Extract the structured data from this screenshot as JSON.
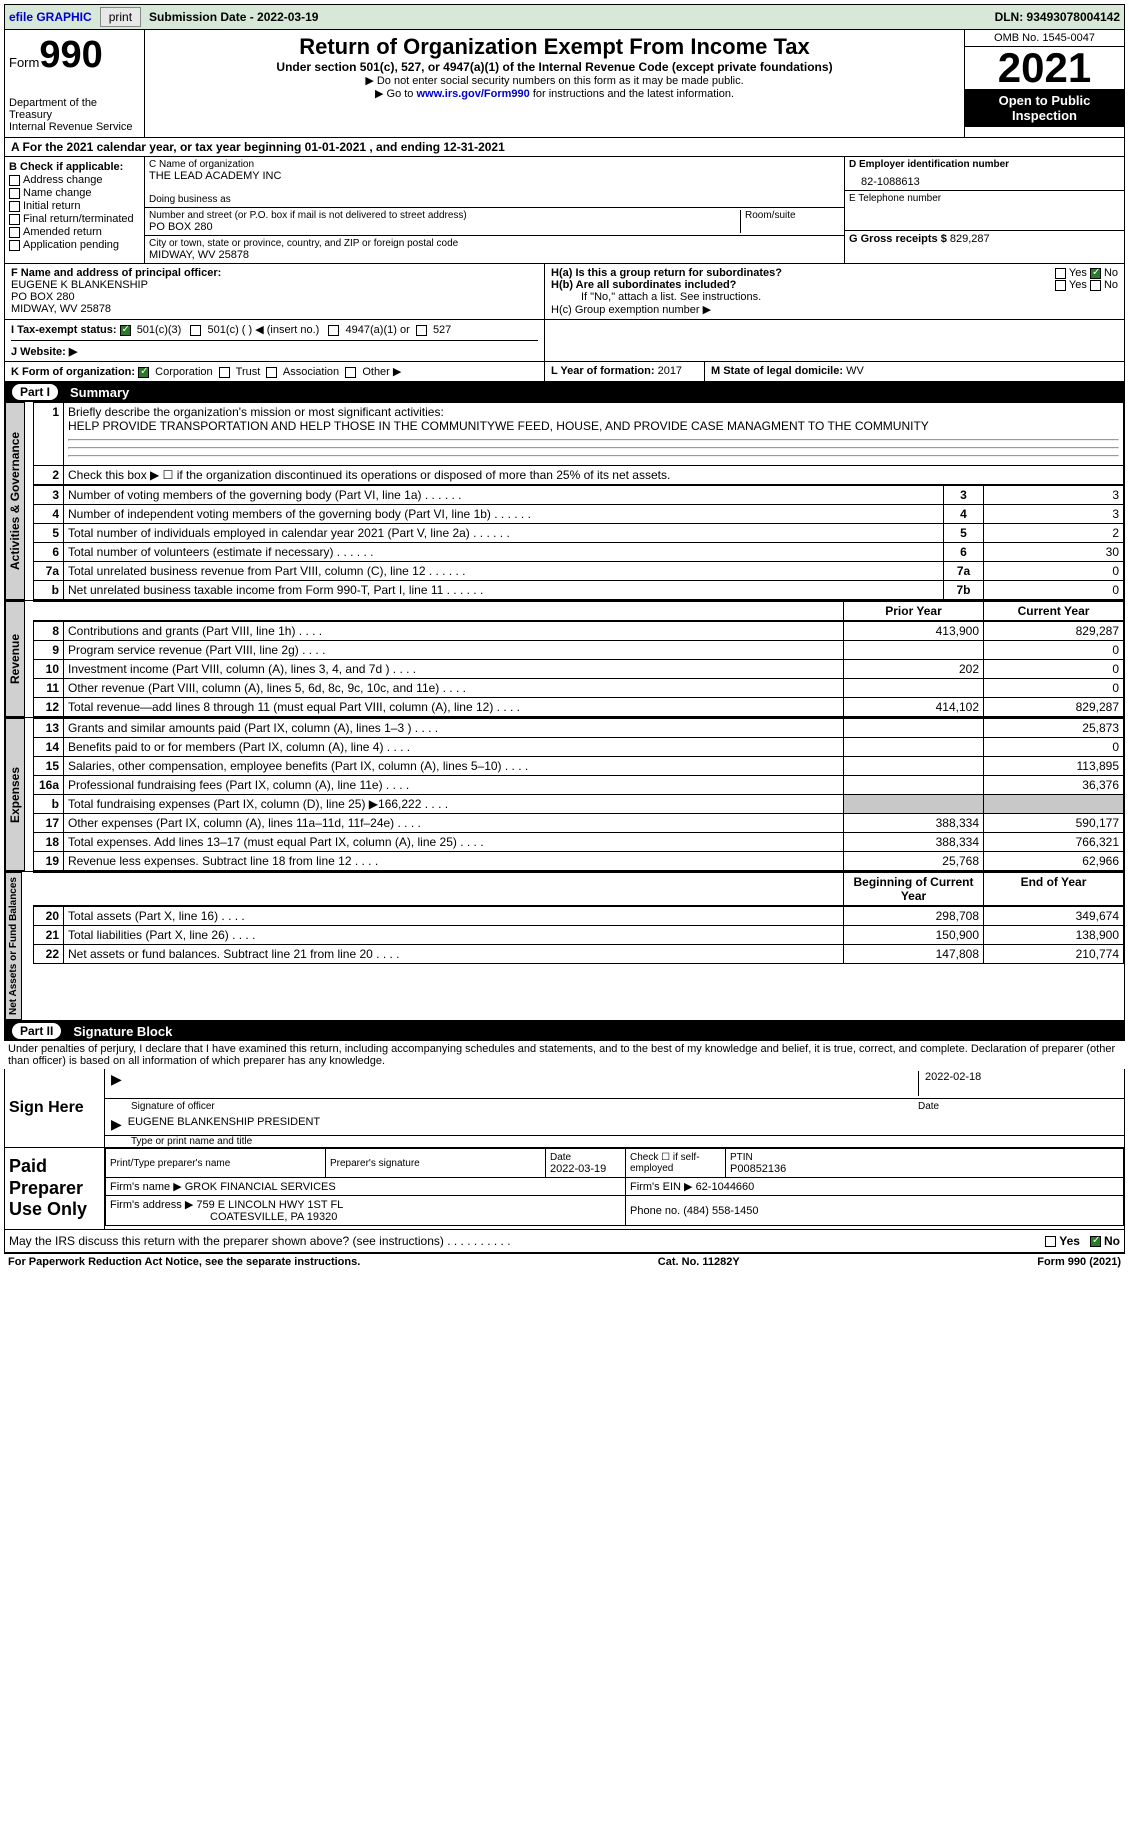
{
  "topbar": {
    "efile": "efile GRAPHIC",
    "print": "print",
    "submission": "Submission Date - 2022-03-19",
    "dln": "DLN: 93493078004142"
  },
  "header": {
    "form_label": "Form",
    "form_num": "990",
    "dept": "Department of the Treasury",
    "irs": "Internal Revenue Service",
    "title": "Return of Organization Exempt From Income Tax",
    "subtitle": "Under section 501(c), 527, or 4947(a)(1) of the Internal Revenue Code (except private foundations)",
    "note1": "▶ Do not enter social security numbers on this form as it may be made public.",
    "note2_pre": "▶ Go to ",
    "note2_link": "www.irs.gov/Form990",
    "note2_post": " for instructions and the latest information.",
    "omb": "OMB No. 1545-0047",
    "year": "2021",
    "open": "Open to Public Inspection"
  },
  "period": "A For the 2021 calendar year, or tax year beginning 01-01-2021    , and ending 12-31-2021",
  "section_b": {
    "label": "B Check if applicable:",
    "items": [
      "Address change",
      "Name change",
      "Initial return",
      "Final return/terminated",
      "Amended return",
      "Application pending"
    ]
  },
  "section_c": {
    "name_label": "C Name of organization",
    "name": "THE LEAD ACADEMY INC",
    "dba_label": "Doing business as",
    "addr_label": "Number and street (or P.O. box if mail is not delivered to street address)",
    "room_label": "Room/suite",
    "addr": "PO BOX 280",
    "city_label": "City or town, state or province, country, and ZIP or foreign postal code",
    "city": "MIDWAY, WV  25878"
  },
  "section_d": {
    "ein_label": "D Employer identification number",
    "ein": "82-1088613",
    "tel_label": "E Telephone number",
    "gross_label": "G Gross receipts $",
    "gross": "829,287"
  },
  "section_f": {
    "label": "F  Name and address of principal officer:",
    "name": "EUGENE K BLANKENSHIP",
    "addr": "PO BOX 280",
    "city": "MIDWAY, WV  25878"
  },
  "section_h": {
    "ha": "H(a)  Is this a group return for subordinates?",
    "hb": "H(b)  Are all subordinates included?",
    "hb_note": "If \"No,\" attach a list. See instructions.",
    "hc": "H(c)  Group exemption number ▶",
    "yes": "Yes",
    "no": "No"
  },
  "section_i": {
    "label": "I  Tax-exempt status:",
    "opts": [
      "501(c)(3)",
      "501(c) (  ) ◀ (insert no.)",
      "4947(a)(1) or",
      "527"
    ]
  },
  "section_j": {
    "label": "J  Website: ▶"
  },
  "section_k": {
    "label": "K Form of organization:",
    "opts": [
      "Corporation",
      "Trust",
      "Association",
      "Other ▶"
    ]
  },
  "section_l": {
    "label": "L Year of formation:",
    "val": "2017"
  },
  "section_m": {
    "label": "M State of legal domicile:",
    "val": "WV"
  },
  "part1": {
    "num": "Part I",
    "title": "Summary"
  },
  "summary": {
    "q1_label": "1",
    "q1": "Briefly describe the organization's mission or most significant activities:",
    "q1_text": "HELP PROVIDE TRANSPORTATION AND HELP THOSE IN THE COMMUNITYWE FEED, HOUSE, AND PROVIDE CASE MANAGMENT TO THE COMMUNITY",
    "q2": "Check this box ▶ ☐  if the organization discontinued its operations or disposed of more than 25% of its net assets.",
    "rows_ag": [
      {
        "n": "3",
        "d": "Number of voting members of the governing body (Part VI, line 1a)",
        "b": "3",
        "v": "3"
      },
      {
        "n": "4",
        "d": "Number of independent voting members of the governing body (Part VI, line 1b)",
        "b": "4",
        "v": "3"
      },
      {
        "n": "5",
        "d": "Total number of individuals employed in calendar year 2021 (Part V, line 2a)",
        "b": "5",
        "v": "2"
      },
      {
        "n": "6",
        "d": "Total number of volunteers (estimate if necessary)",
        "b": "6",
        "v": "30"
      },
      {
        "n": "7a",
        "d": "Total unrelated business revenue from Part VIII, column (C), line 12",
        "b": "7a",
        "v": "0"
      },
      {
        "n": "b",
        "d": "Net unrelated business taxable income from Form 990-T, Part I, line 11",
        "b": "7b",
        "v": "0"
      }
    ],
    "col_prior": "Prior Year",
    "col_current": "Current Year",
    "rows_rev": [
      {
        "n": "8",
        "d": "Contributions and grants (Part VIII, line 1h)",
        "p": "413,900",
        "c": "829,287"
      },
      {
        "n": "9",
        "d": "Program service revenue (Part VIII, line 2g)",
        "p": "",
        "c": "0"
      },
      {
        "n": "10",
        "d": "Investment income (Part VIII, column (A), lines 3, 4, and 7d )",
        "p": "202",
        "c": "0"
      },
      {
        "n": "11",
        "d": "Other revenue (Part VIII, column (A), lines 5, 6d, 8c, 9c, 10c, and 11e)",
        "p": "",
        "c": "0"
      },
      {
        "n": "12",
        "d": "Total revenue—add lines 8 through 11 (must equal Part VIII, column (A), line 12)",
        "p": "414,102",
        "c": "829,287"
      }
    ],
    "rows_exp": [
      {
        "n": "13",
        "d": "Grants and similar amounts paid (Part IX, column (A), lines 1–3 )",
        "p": "",
        "c": "25,873"
      },
      {
        "n": "14",
        "d": "Benefits paid to or for members (Part IX, column (A), line 4)",
        "p": "",
        "c": "0"
      },
      {
        "n": "15",
        "d": "Salaries, other compensation, employee benefits (Part IX, column (A), lines 5–10)",
        "p": "",
        "c": "113,895"
      },
      {
        "n": "16a",
        "d": "Professional fundraising fees (Part IX, column (A), line 11e)",
        "p": "",
        "c": "36,376"
      },
      {
        "n": "b",
        "d": "Total fundraising expenses (Part IX, column (D), line 25) ▶166,222",
        "p": "shade",
        "c": "shade"
      },
      {
        "n": "17",
        "d": "Other expenses (Part IX, column (A), lines 11a–11d, 11f–24e)",
        "p": "388,334",
        "c": "590,177"
      },
      {
        "n": "18",
        "d": "Total expenses. Add lines 13–17 (must equal Part IX, column (A), line 25)",
        "p": "388,334",
        "c": "766,321"
      },
      {
        "n": "19",
        "d": "Revenue less expenses. Subtract line 18 from line 12",
        "p": "25,768",
        "c": "62,966"
      }
    ],
    "col_begin": "Beginning of Current Year",
    "col_end": "End of Year",
    "rows_net": [
      {
        "n": "20",
        "d": "Total assets (Part X, line 16)",
        "p": "298,708",
        "c": "349,674"
      },
      {
        "n": "21",
        "d": "Total liabilities (Part X, line 26)",
        "p": "150,900",
        "c": "138,900"
      },
      {
        "n": "22",
        "d": "Net assets or fund balances. Subtract line 21 from line 20",
        "p": "147,808",
        "c": "210,774"
      }
    ]
  },
  "vtabs": {
    "ag": "Activities & Governance",
    "rev": "Revenue",
    "exp": "Expenses",
    "net": "Net Assets or Fund Balances"
  },
  "part2": {
    "num": "Part II",
    "title": "Signature Block"
  },
  "penalties": "Under penalties of perjury, I declare that I have examined this return, including accompanying schedules and statements, and to the best of my knowledge and belief, it is true, correct, and complete. Declaration of preparer (other than officer) is based on all information of which preparer has any knowledge.",
  "sign": {
    "here": "Sign Here",
    "sig_label": "Signature of officer",
    "date": "2022-02-18",
    "date_label": "Date",
    "name": "EUGENE BLANKENSHIP  PRESIDENT",
    "name_label": "Type or print name and title"
  },
  "paid": {
    "label": "Paid Preparer Use Only",
    "h1": "Print/Type preparer's name",
    "h2": "Preparer's signature",
    "h3": "Date",
    "h3v": "2022-03-19",
    "h4": "Check ☐ if self-employed",
    "h5": "PTIN",
    "h5v": "P00852136",
    "firm_label": "Firm's name    ▶",
    "firm": "GROK FINANCIAL SERVICES",
    "ein_label": "Firm's EIN ▶",
    "ein": "62-1044660",
    "addr_label": "Firm's address ▶",
    "addr1": "759 E LINCOLN HWY 1ST FL",
    "addr2": "COATESVILLE, PA  19320",
    "phone_label": "Phone no.",
    "phone": "(484) 558-1450"
  },
  "discuss": "May the IRS discuss this return with the preparer shown above? (see instructions)",
  "footer": {
    "pra": "For Paperwork Reduction Act Notice, see the separate instructions.",
    "cat": "Cat. No. 11282Y",
    "form": "Form 990 (2021)"
  }
}
